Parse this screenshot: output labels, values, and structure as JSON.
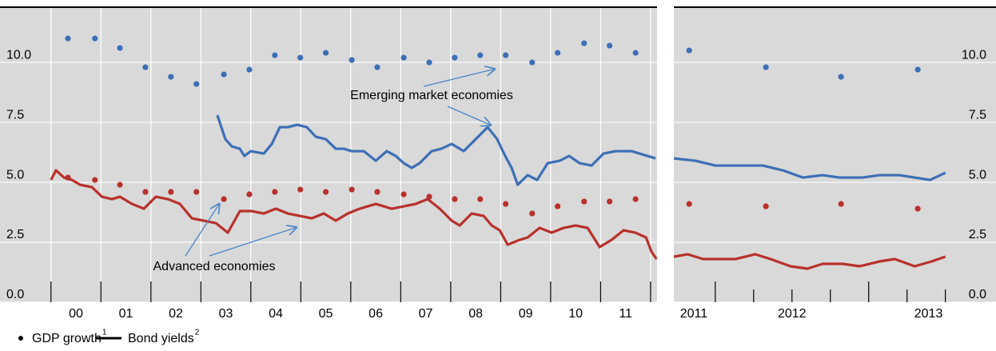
{
  "chart_data": [
    {
      "type": "combo",
      "ylim": [
        0,
        12.27
      ],
      "yticks": [
        {
          "value": 0,
          "label": "0.0"
        },
        {
          "value": 2.5,
          "label": "2.5"
        },
        {
          "value": 5,
          "label": "5.0"
        },
        {
          "value": 7.5,
          "label": "7.5"
        },
        {
          "value": 10,
          "label": "10.0"
        }
      ],
      "yaxis_side": "left",
      "grid": true,
      "xgrid": true,
      "xlim": [
        1998.98,
        2012.13
      ],
      "xticks": [
        {
          "value": 2000.5,
          "label": "00"
        },
        {
          "value": 2001.5,
          "label": "01"
        },
        {
          "value": 2002.5,
          "label": "02"
        },
        {
          "value": 2003.5,
          "label": "03"
        },
        {
          "value": 2004.5,
          "label": "04"
        },
        {
          "value": 2005.5,
          "label": "05"
        },
        {
          "value": 2006.5,
          "label": "06"
        },
        {
          "value": 2007.5,
          "label": "07"
        },
        {
          "value": 2008.5,
          "label": "08"
        },
        {
          "value": 2009.5,
          "label": "09"
        },
        {
          "value": 2010.5,
          "label": "10"
        },
        {
          "value": 2011.5,
          "label": "11"
        }
      ],
      "xtick_marks": [
        2000,
        2001,
        2002,
        2003,
        2004,
        2005,
        2006,
        2007,
        2008,
        2009,
        2010,
        2011,
        2012
      ],
      "annotations": [
        "Emerging market economies",
        "Advanced economies"
      ],
      "series": [
        {
          "type": "scatter",
          "color": "#3d6fb6",
          "x": [
            2000.34,
            2000.88,
            2001.38,
            2001.89,
            2002.4,
            2002.91,
            2003.46,
            2003.97,
            2004.48,
            2004.99,
            2005.5,
            2006.02,
            2006.53,
            2007.06,
            2007.57,
            2008.08,
            2008.59,
            2009.1,
            2009.63,
            2010.14,
            2010.67,
            2011.18,
            2011.7
          ],
          "values": [
            11.0,
            11.0,
            10.6,
            9.8,
            9.4,
            9.1,
            9.5,
            9.7,
            10.3,
            10.2,
            10.4,
            10.1,
            9.8,
            10.2,
            10.0,
            10.2,
            10.3,
            10.3,
            10.0,
            10.4,
            10.8,
            10.7,
            10.4
          ]
        },
        {
          "type": "scatter",
          "color": "#b8312c",
          "x": [
            2000.34,
            2000.88,
            2001.38,
            2001.89,
            2002.4,
            2002.91,
            2003.46,
            2003.97,
            2004.48,
            2004.99,
            2005.5,
            2006.02,
            2006.53,
            2007.06,
            2007.57,
            2008.08,
            2008.59,
            2009.1,
            2009.63,
            2010.14,
            2010.67,
            2011.18,
            2011.7
          ],
          "values": [
            5.2,
            5.1,
            4.9,
            4.6,
            4.6,
            4.6,
            4.3,
            4.5,
            4.6,
            4.7,
            4.6,
            4.7,
            4.6,
            4.5,
            4.4,
            4.3,
            4.3,
            4.1,
            3.7,
            4.0,
            4.2,
            4.2,
            4.3
          ]
        },
        {
          "type": "line",
          "color": "#3d6fb6",
          "x": [
            2003.33,
            2003.49,
            2003.62,
            2003.78,
            2003.87,
            2004.0,
            2004.26,
            2004.42,
            2004.58,
            2004.74,
            2004.93,
            2005.12,
            2005.3,
            2005.5,
            2005.7,
            2005.86,
            2006.02,
            2006.26,
            2006.5,
            2006.72,
            2006.9,
            2007.06,
            2007.22,
            2007.38,
            2007.62,
            2007.81,
            2008.02,
            2008.26,
            2008.5,
            2008.74,
            2008.93,
            2009.09,
            2009.22,
            2009.34,
            2009.54,
            2009.73,
            2009.94,
            2010.18,
            2010.37,
            2010.58,
            2010.82,
            2011.06,
            2011.3,
            2011.62,
            2011.94,
            2012.1
          ],
          "values": [
            7.8,
            6.8,
            6.5,
            6.4,
            6.1,
            6.3,
            6.2,
            6.6,
            7.3,
            7.3,
            7.4,
            7.3,
            6.9,
            6.8,
            6.4,
            6.4,
            6.3,
            6.3,
            5.9,
            6.3,
            6.1,
            5.8,
            5.6,
            5.8,
            6.3,
            6.4,
            6.6,
            6.3,
            6.8,
            7.3,
            6.8,
            6.1,
            5.6,
            4.9,
            5.3,
            5.1,
            5.8,
            5.9,
            6.1,
            5.8,
            5.7,
            6.2,
            6.3,
            6.3,
            6.1,
            6.0
          ]
        },
        {
          "type": "line",
          "color": "#b8312c",
          "x": [
            2000.0,
            2000.1,
            2000.26,
            2000.42,
            2000.58,
            2000.82,
            2001.02,
            2001.22,
            2001.38,
            2001.62,
            2001.86,
            2002.1,
            2002.34,
            2002.58,
            2002.82,
            2003.06,
            2003.3,
            2003.54,
            2003.78,
            2004.02,
            2004.26,
            2004.5,
            2004.74,
            2004.98,
            2005.22,
            2005.46,
            2005.7,
            2005.94,
            2006.18,
            2006.5,
            2006.82,
            2007.06,
            2007.3,
            2007.54,
            2007.78,
            2008.02,
            2008.18,
            2008.42,
            2008.66,
            2008.82,
            2008.98,
            2009.14,
            2009.38,
            2009.54,
            2009.78,
            2010.02,
            2010.26,
            2010.5,
            2010.74,
            2010.98,
            2011.22,
            2011.46,
            2011.7,
            2011.91,
            2012.02,
            2012.12
          ],
          "values": [
            5.1,
            5.5,
            5.2,
            5.1,
            4.9,
            4.8,
            4.4,
            4.3,
            4.4,
            4.1,
            3.9,
            4.4,
            4.3,
            4.1,
            3.5,
            3.4,
            3.3,
            2.9,
            3.8,
            3.8,
            3.7,
            3.9,
            3.7,
            3.6,
            3.5,
            3.7,
            3.4,
            3.7,
            3.9,
            4.1,
            3.9,
            4.0,
            4.1,
            4.3,
            3.9,
            3.4,
            3.2,
            3.7,
            3.6,
            3.2,
            3.0,
            2.4,
            2.6,
            2.7,
            3.1,
            2.9,
            3.1,
            3.2,
            3.1,
            2.3,
            2.6,
            3.0,
            2.9,
            2.7,
            2.1,
            1.8
          ]
        }
      ]
    },
    {
      "type": "combo",
      "ylim": [
        0,
        12.27
      ],
      "yticks": [
        {
          "value": 0,
          "label": "0.0"
        },
        {
          "value": 2.5,
          "label": "2.5"
        },
        {
          "value": 5,
          "label": "5.0"
        },
        {
          "value": 7.5,
          "label": "7.5"
        },
        {
          "value": 10,
          "label": "10.0"
        }
      ],
      "yaxis_side": "right",
      "grid": true,
      "xgrid": false,
      "xlim": [
        2011.73,
        2013.83
      ],
      "xticks": [
        {
          "value": 2011.86,
          "label": "2011"
        },
        {
          "value": 2012.5,
          "label": "2012"
        },
        {
          "value": 2013.39,
          "label": "2013"
        }
      ],
      "xtick_marks": [
        2012,
        2012.25,
        2012.5,
        2012.75,
        2013,
        2013.25,
        2013.5
      ],
      "series": [
        {
          "type": "scatter",
          "color": "#3d6fb6",
          "x": [
            2011.83,
            2012.33,
            2012.82,
            2013.32
          ],
          "values": [
            10.5,
            9.8,
            9.4,
            9.7
          ]
        },
        {
          "type": "scatter",
          "color": "#b8312c",
          "x": [
            2011.83,
            2012.33,
            2012.82,
            2013.32
          ],
          "values": [
            4.1,
            4.0,
            4.1,
            3.9
          ]
        },
        {
          "type": "line",
          "color": "#3d6fb6",
          "x": [
            2011.73,
            2011.87,
            2012.0,
            2012.18,
            2012.31,
            2012.44,
            2012.57,
            2012.7,
            2012.81,
            2012.96,
            2013.07,
            2013.2,
            2013.3,
            2013.4,
            2013.5
          ],
          "values": [
            6.0,
            5.9,
            5.7,
            5.7,
            5.7,
            5.5,
            5.2,
            5.3,
            5.2,
            5.2,
            5.3,
            5.3,
            5.2,
            5.1,
            5.4
          ]
        },
        {
          "type": "line",
          "color": "#b8312c",
          "x": [
            2011.73,
            2011.82,
            2011.92,
            2012.13,
            2012.26,
            2012.36,
            2012.49,
            2012.6,
            2012.7,
            2012.83,
            2012.94,
            2013.07,
            2013.17,
            2013.3,
            2013.41,
            2013.5
          ],
          "values": [
            1.9,
            2.0,
            1.8,
            1.8,
            2.0,
            1.8,
            1.5,
            1.4,
            1.6,
            1.6,
            1.5,
            1.7,
            1.8,
            1.5,
            1.7,
            1.9
          ]
        }
      ]
    }
  ],
  "legend": [
    {
      "label": "GDP growth",
      "footnote": "1",
      "marker": "dot"
    },
    {
      "label": "Bond yields",
      "footnote": "2",
      "marker": "line"
    }
  ]
}
